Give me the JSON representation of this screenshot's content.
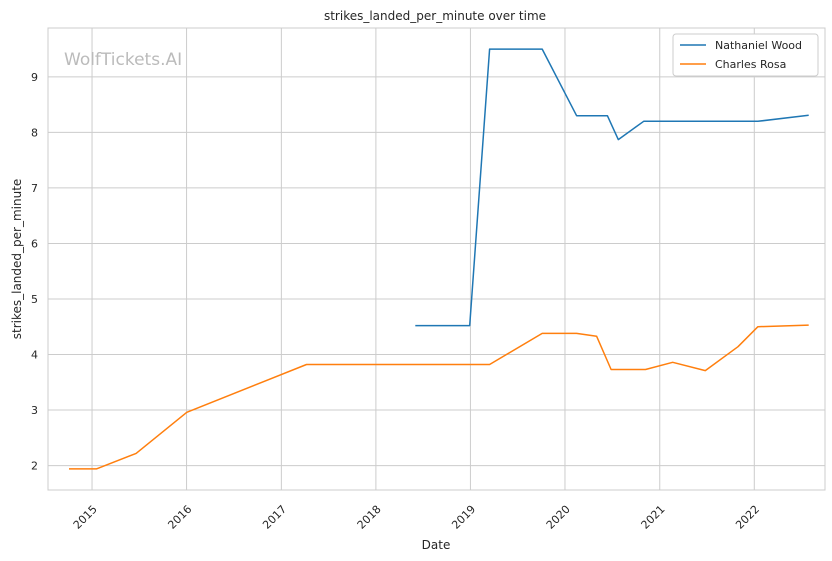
{
  "chart_data": {
    "type": "line",
    "title": "strikes_landed_per_minute over time",
    "xlabel": "Date",
    "ylabel": "strikes_landed_per_minute",
    "watermark": "WolfTickets.AI",
    "x_ticks": [
      "2015",
      "2016",
      "2017",
      "2018",
      "2019",
      "2020",
      "2021",
      "2022"
    ],
    "y_ticks": [
      "2",
      "3",
      "4",
      "5",
      "6",
      "7",
      "8",
      "9"
    ],
    "xlim": [
      "2014-07-15",
      "2022-10-01"
    ],
    "ylim": [
      1.56,
      9.88
    ],
    "grid": true,
    "legend_position": "top-right",
    "series": [
      {
        "name": "Nathaniel Wood",
        "color": "#1f77b4",
        "points": [
          [
            "2018-06-02",
            4.52
          ],
          [
            "2018-12-29",
            4.52
          ],
          [
            "2019-03-16",
            9.5
          ],
          [
            "2019-10-05",
            9.5
          ],
          [
            "2020-02-15",
            8.3
          ],
          [
            "2020-06-13",
            8.3
          ],
          [
            "2020-07-25",
            7.87
          ],
          [
            "2020-10-31",
            8.2
          ],
          [
            "2022-01-15",
            8.2
          ],
          [
            "2022-07-30",
            8.31
          ]
        ]
      },
      {
        "name": "Charles Rosa",
        "color": "#ff7f0e",
        "points": [
          [
            "2014-10-04",
            1.94
          ],
          [
            "2015-01-18",
            1.94
          ],
          [
            "2015-06-20",
            2.22
          ],
          [
            "2016-01-02",
            2.96
          ],
          [
            "2017-04-08",
            3.82
          ],
          [
            "2019-03-16",
            3.82
          ],
          [
            "2019-10-05",
            4.38
          ],
          [
            "2020-02-15",
            4.38
          ],
          [
            "2020-05-02",
            4.33
          ],
          [
            "2020-06-27",
            3.73
          ],
          [
            "2020-11-07",
            3.73
          ],
          [
            "2021-02-20",
            3.86
          ],
          [
            "2021-06-26",
            3.71
          ],
          [
            "2021-10-30",
            4.14
          ],
          [
            "2022-01-15",
            4.5
          ],
          [
            "2022-07-30",
            4.53
          ]
        ]
      }
    ]
  }
}
